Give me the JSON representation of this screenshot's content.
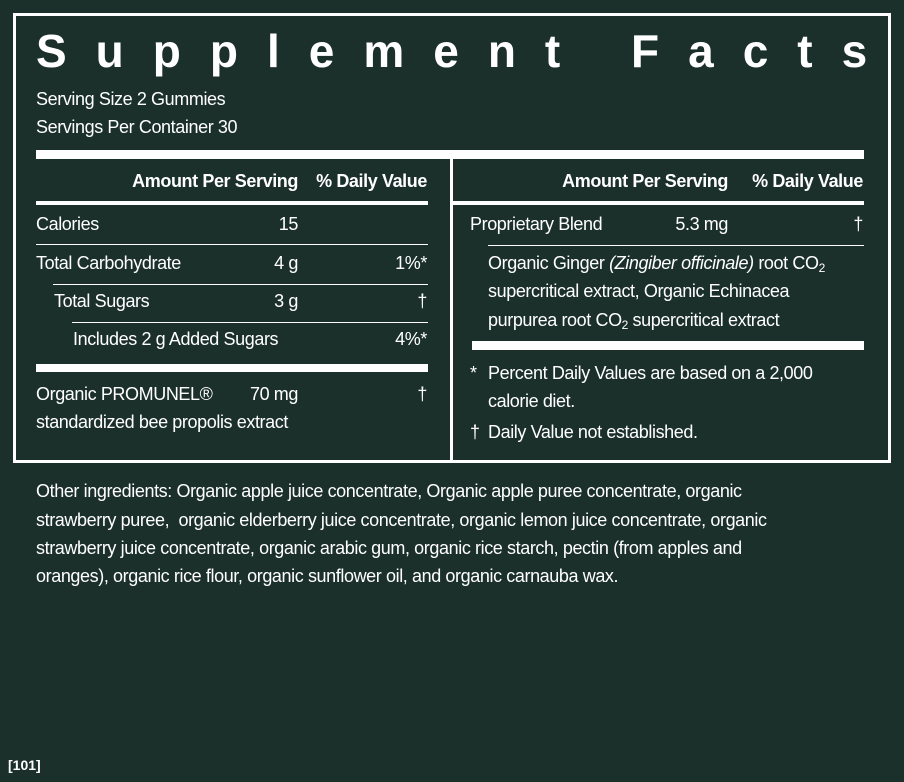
{
  "title": "Supplement Facts",
  "serving_size": "Serving Size 2 Gummies",
  "servings_per_container": "Servings Per Container 30",
  "left": {
    "header_amount": "Amount Per Serving",
    "header_dv": "% Daily Value",
    "rows": [
      {
        "name": "Calories",
        "amount": "15",
        "dv": ""
      },
      {
        "name": "Total Carbohydrate",
        "amount": "4 g",
        "dv": "1%*"
      },
      {
        "name": "Total Sugars",
        "amount": "3 g",
        "dv": "†"
      },
      {
        "name": "Includes 2 g Added Sugars",
        "amount": "",
        "dv": "4%*"
      }
    ],
    "promunel": {
      "name": "Organic PROMUNEL®",
      "amount": "70 mg",
      "dv": "†",
      "desc": "standardized bee propolis extract"
    }
  },
  "right": {
    "header_amount": "Amount Per Serving",
    "header_dv": "% Daily Value",
    "blend": {
      "name": "Proprietary Blend",
      "amount": "5.3 mg",
      "dv": "†"
    },
    "blend_ing": {
      "l1a": "Organic Ginger ",
      "l1b": "(Zingiber officinale)",
      "l1c": " root CO",
      "sub": "2",
      "l2": "supercritical extract, Organic Echinacea",
      "l3a": "purpurea root CO",
      "l3b": " supercritical extract"
    },
    "foot1_mark": "*",
    "foot1a": "Percent Daily Values are based on a 2,000",
    "foot1b": "calorie diet.",
    "foot2_mark": "†",
    "foot2": "Daily Value not established."
  },
  "other_ingredients": [
    "Other ingredients: Organic apple juice concentrate, Organic apple puree concentrate, organic",
    "strawberry puree,  organic elderberry juice concentrate, organic lemon juice concentrate, organic",
    "strawberry juice concentrate, organic arabic gum, organic rice starch, pectin (from apples and",
    "oranges), organic rice flour, organic sunflower oil, and organic carnauba wax."
  ],
  "footer_label": "[101]",
  "colors": {
    "background": "#1b302b",
    "foreground": "#ffffff"
  }
}
